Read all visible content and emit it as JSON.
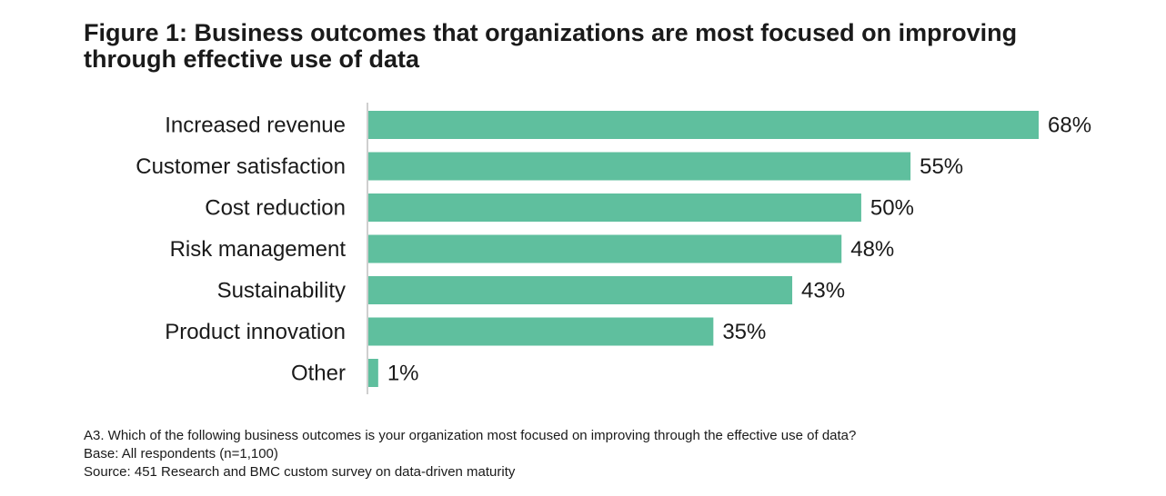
{
  "chart_data": {
    "type": "bar",
    "orientation": "horizontal",
    "title": "Figure 1: Business outcomes that organizations are most focused on improving through effective use of data",
    "categories": [
      "Increased revenue",
      "Customer satisfaction",
      "Cost reduction",
      "Risk management",
      "Sustainability",
      "Product innovation",
      "Other"
    ],
    "values": [
      68,
      55,
      50,
      48,
      43,
      35,
      1
    ],
    "value_labels": [
      "68%",
      "55%",
      "50%",
      "48%",
      "43%",
      "35%",
      "1%"
    ],
    "xlim": [
      0,
      68
    ],
    "grid": false,
    "bar_color": "#5fbf9e",
    "axis_color": "#bfbfbf"
  },
  "notes": {
    "question": "A3. Which of the following business outcomes is your organization most focused on improving through the effective use of data?",
    "base": "Base: All respondents (n=1,100)",
    "source": "Source: 451 Research and BMC custom survey on data-driven maturity"
  }
}
